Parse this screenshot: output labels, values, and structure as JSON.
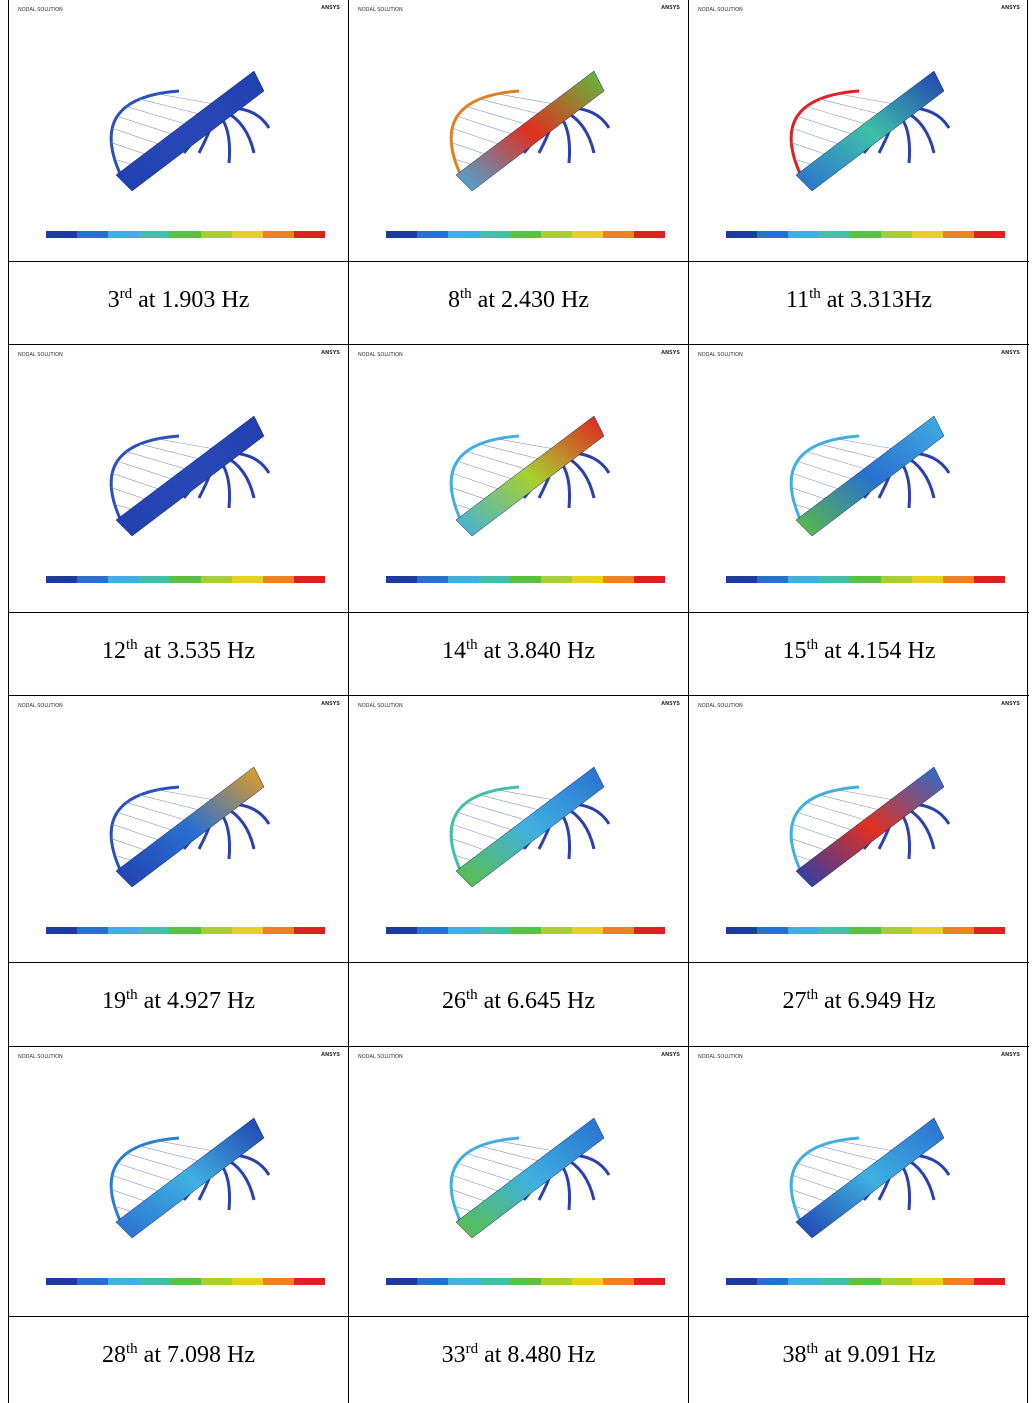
{
  "figures": [
    {
      "panel": {
        "title": "NODAL SOLUTION",
        "logo": "ANSYS"
      },
      "caption": {
        "mode": "3",
        "suffix": "rd",
        "frequency": "at 1.903 Hz"
      }
    },
    {
      "panel": {
        "title": "NODAL SOLUTION",
        "logo": "ANSYS"
      },
      "caption": {
        "mode": "8",
        "suffix": "th",
        "frequency": "at 2.430 Hz"
      }
    },
    {
      "panel": {
        "title": "NODAL SOLUTION",
        "logo": "ANSYS"
      },
      "caption": {
        "mode": "11",
        "suffix": "th",
        "frequency": "at 3.313Hz"
      }
    },
    {
      "panel": {
        "title": "NODAL SOLUTION",
        "logo": "ANSYS"
      },
      "caption": {
        "mode": "12",
        "suffix": "th",
        "frequency": "at 3.535 Hz"
      }
    },
    {
      "panel": {
        "title": "NODAL SOLUTION",
        "logo": "ANSYS"
      },
      "caption": {
        "mode": "14",
        "suffix": "th",
        "frequency": "at 3.840 Hz"
      }
    },
    {
      "panel": {
        "title": "NODAL SOLUTION",
        "logo": "ANSYS"
      },
      "caption": {
        "mode": "15",
        "suffix": "th",
        "frequency": "at 4.154 Hz"
      }
    },
    {
      "panel": {
        "title": "NODAL SOLUTION",
        "logo": "ANSYS"
      },
      "caption": {
        "mode": "19",
        "suffix": "th",
        "frequency": "at 4.927 Hz"
      }
    },
    {
      "panel": {
        "title": "NODAL SOLUTION",
        "logo": "ANSYS"
      },
      "caption": {
        "mode": "26",
        "suffix": "th",
        "frequency": "at 6.645 Hz"
      }
    },
    {
      "panel": {
        "title": "NODAL SOLUTION",
        "logo": "ANSYS"
      },
      "caption": {
        "mode": "27",
        "suffix": "th",
        "frequency": "at 6.949 Hz"
      }
    },
    {
      "panel": {
        "title": "NODAL SOLUTION",
        "logo": "ANSYS"
      },
      "caption": {
        "mode": "28",
        "suffix": "th",
        "frequency": "at 7.098 Hz"
      }
    },
    {
      "panel": {
        "title": "NODAL SOLUTION",
        "logo": "ANSYS"
      },
      "caption": {
        "mode": "33",
        "suffix": "rd",
        "frequency": "at 8.480 Hz"
      }
    },
    {
      "panel": {
        "title": "NODAL SOLUTION",
        "logo": "ANSYS"
      },
      "caption": {
        "mode": "38",
        "suffix": "th",
        "frequency": "at 9.091 Hz"
      }
    }
  ]
}
